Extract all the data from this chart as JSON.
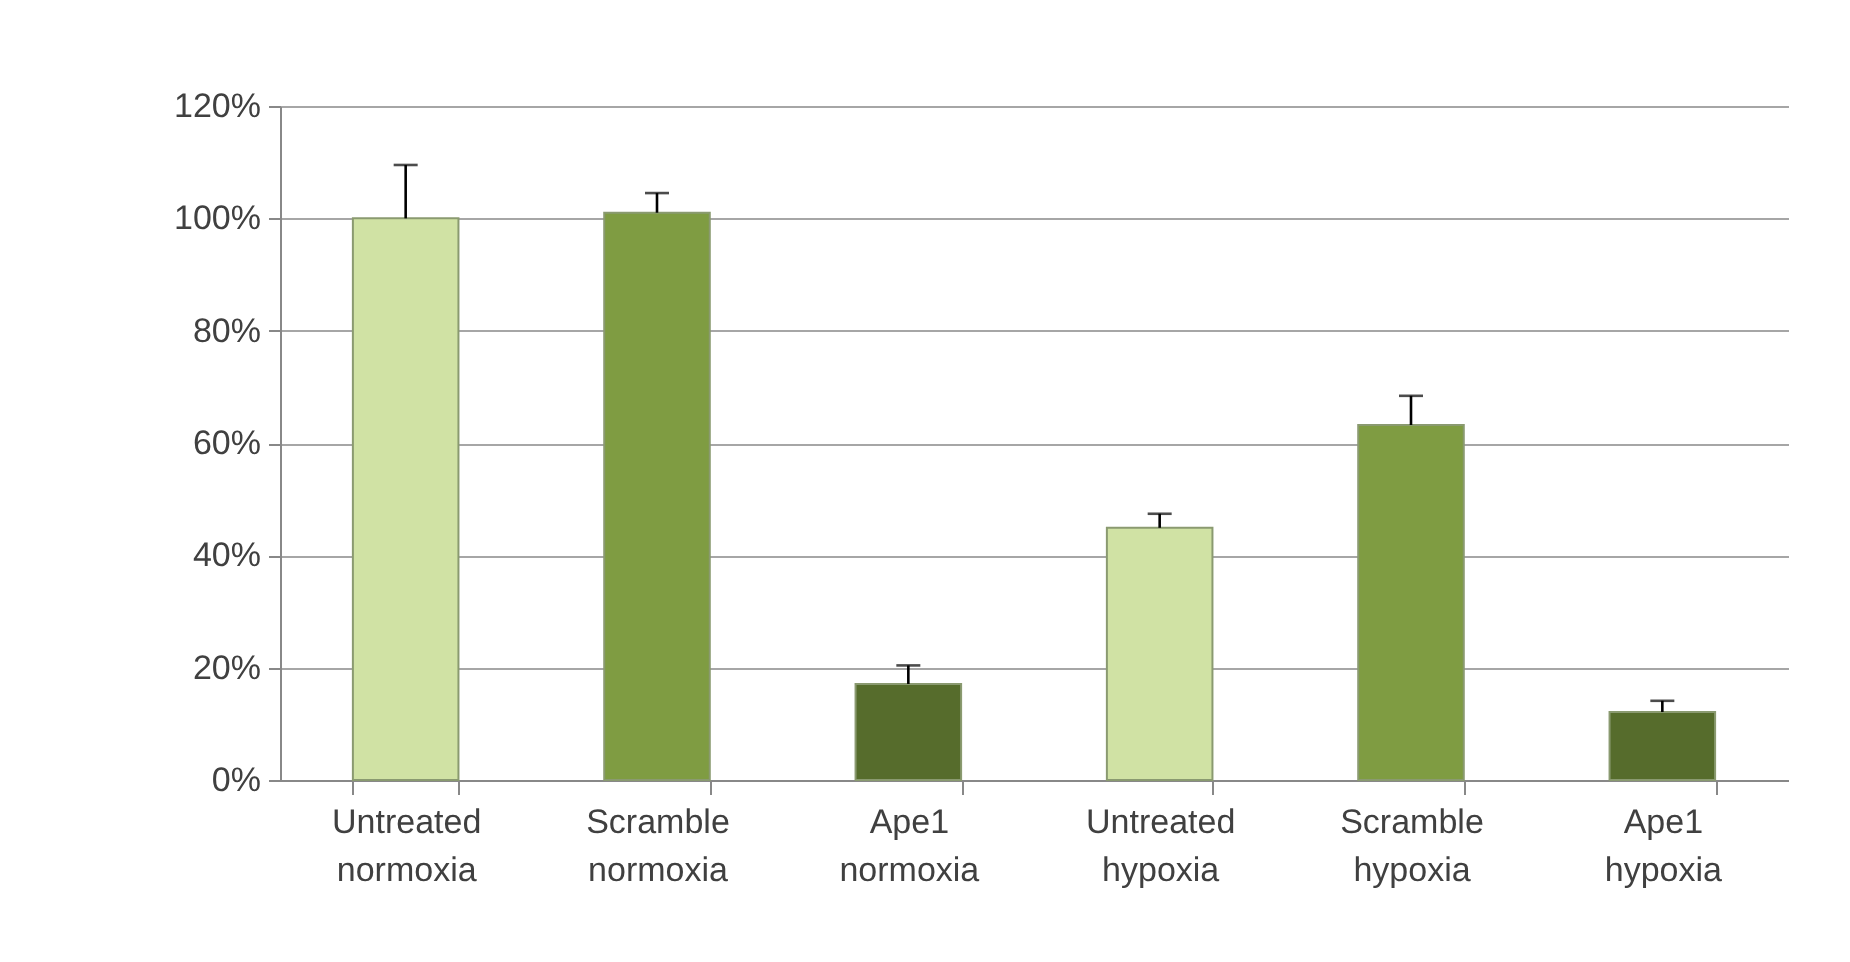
{
  "chart_data": {
    "type": "bar",
    "categories": [
      "Untreated normoxia",
      "Scramble normoxia",
      "Ape1 normoxia",
      "Untreated hypoxia",
      "Scramble hypoxia",
      "Ape1 hypoxia"
    ],
    "values": [
      100,
      101,
      17.1,
      44.9,
      63.2,
      12.1
    ],
    "colors": [
      "#d0e2a4",
      "#7f9c42",
      "#566c2c",
      "#d0e2a4",
      "#7f9c42",
      "#566c2c"
    ],
    "errors": [
      [
        100,
        109.5
      ],
      [
        101,
        104.5
      ],
      [
        17.1,
        20.4
      ],
      [
        44.9,
        47.4
      ],
      [
        63.2,
        68.4
      ],
      [
        12.1,
        14.1
      ]
    ],
    "ylim": [
      0,
      120
    ],
    "yticks": [
      {
        "value": 0,
        "label": "0%"
      },
      {
        "value": 20,
        "label": "20%"
      },
      {
        "value": 40,
        "label": "40%"
      },
      {
        "value": 60,
        "label": "60%"
      },
      {
        "value": 80,
        "label": "80%"
      },
      {
        "value": 100,
        "label": "100%"
      },
      {
        "value": 120,
        "label": "120%"
      }
    ],
    "grid": "y"
  }
}
